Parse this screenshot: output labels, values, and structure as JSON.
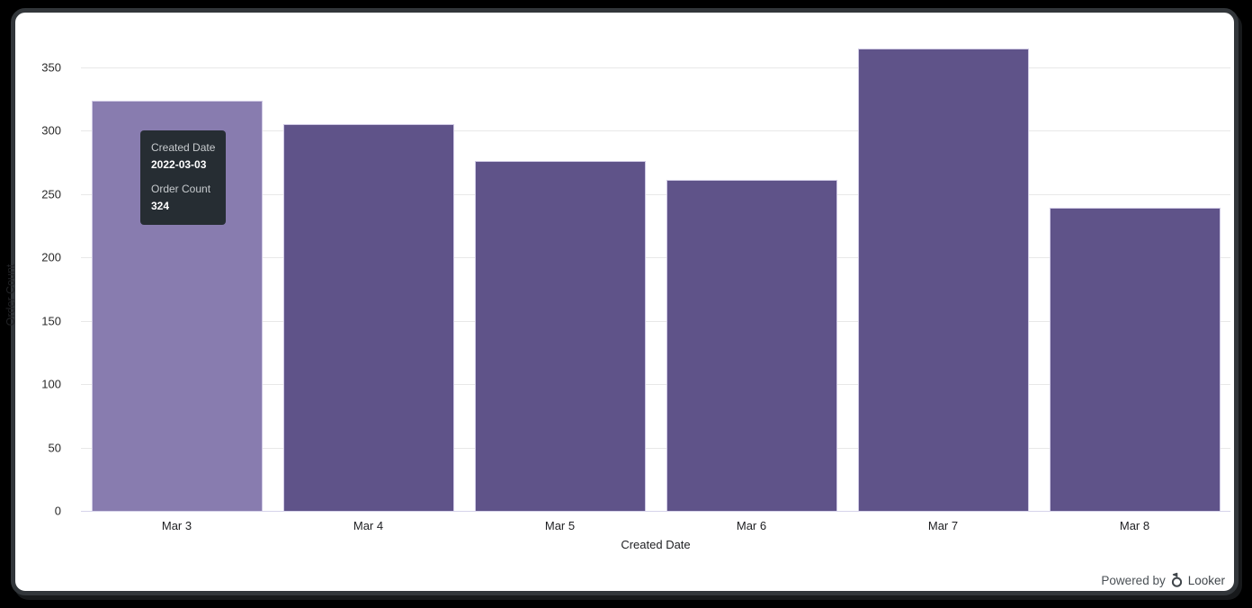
{
  "chart_data": {
    "type": "bar",
    "title": "",
    "categories": [
      "Mar 3",
      "Mar 4",
      "Mar 5",
      "Mar 6",
      "Mar 7",
      "Mar 8"
    ],
    "values": [
      324,
      305,
      276,
      261,
      365,
      239
    ],
    "xlabel": "Created Date",
    "ylabel": "Order Count",
    "ylim": [
      0,
      350
    ],
    "yticks": [
      0,
      50,
      100,
      150,
      200,
      250,
      300,
      350
    ],
    "grid": true,
    "legend": "none",
    "bar_color": "#5F5389",
    "bar_hover_color": "#887CAF",
    "hovered_index": 0
  },
  "tooltip": {
    "dimension_label": "Created Date",
    "dimension_value": "2022-03-03",
    "measure_label": "Order Count",
    "measure_value": "324",
    "bg": "#262D33"
  },
  "footer": {
    "powered_by": "Powered by",
    "brand": "Looker"
  },
  "colors": {
    "card_bg": "#ffffff",
    "frame_border": "#32363a",
    "gridline": "#e8e8e8",
    "baseline": "#d6d3ea"
  }
}
